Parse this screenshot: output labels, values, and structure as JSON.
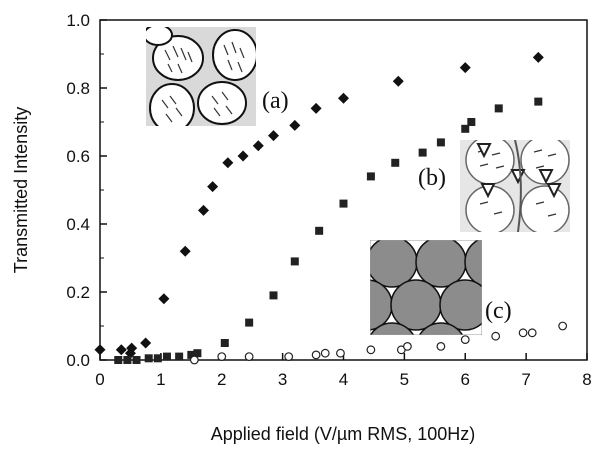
{
  "chart_data": {
    "type": "scatter",
    "xlabel": "Applied field (V/µm RMS, 100Hz)",
    "ylabel": "Transmitted Intensity",
    "xlim": [
      0,
      8
    ],
    "ylim": [
      0,
      1.0
    ],
    "xticks": [
      0,
      1,
      2,
      3,
      4,
      5,
      6,
      7,
      8
    ],
    "xtick_labels": [
      "0",
      "1",
      "2",
      "3",
      "4",
      "5",
      "6",
      "7",
      "8"
    ],
    "yticks": [
      0,
      0.2,
      0.4,
      0.6,
      0.8,
      1.0
    ],
    "ytick_labels": [
      "0.0",
      "0.2",
      "0.4",
      "0.6",
      "0.8",
      "1.0"
    ],
    "grid": false,
    "series": [
      {
        "marker": "diamond",
        "color": "#111111",
        "x": [
          0.0,
          0.35,
          0.5,
          0.52,
          0.75,
          1.05,
          1.4,
          1.7,
          1.85,
          2.1,
          2.35,
          2.6,
          2.85,
          3.2,
          3.55,
          4.0,
          4.9,
          6.0,
          7.2
        ],
        "y": [
          0.03,
          0.03,
          0.02,
          0.035,
          0.05,
          0.18,
          0.32,
          0.44,
          0.51,
          0.58,
          0.6,
          0.63,
          0.66,
          0.69,
          0.74,
          0.77,
          0.82,
          0.86,
          0.89
        ]
      },
      {
        "marker": "square",
        "color": "#222222",
        "x": [
          0.3,
          0.45,
          0.6,
          0.8,
          0.95,
          1.1,
          1.3,
          1.5,
          1.6,
          2.05,
          2.45,
          2.85,
          3.2,
          3.6,
          4.0,
          4.45,
          4.85,
          5.3,
          5.6,
          6.0,
          6.1,
          6.55,
          7.2
        ],
        "y": [
          0.0,
          0.0,
          0.0,
          0.005,
          0.005,
          0.01,
          0.01,
          0.015,
          0.02,
          0.05,
          0.11,
          0.19,
          0.29,
          0.38,
          0.46,
          0.54,
          0.58,
          0.61,
          0.64,
          0.68,
          0.7,
          0.74,
          0.76
        ]
      },
      {
        "marker": "open-circle",
        "color": "#222222",
        "x": [
          1.55,
          2.0,
          2.45,
          3.1,
          3.55,
          3.7,
          3.95,
          4.45,
          4.95,
          5.05,
          5.6,
          6.0,
          6.5,
          6.95,
          7.1,
          7.6
        ],
        "y": [
          0.0,
          0.01,
          0.01,
          0.01,
          0.015,
          0.02,
          0.02,
          0.03,
          0.03,
          0.04,
          0.04,
          0.06,
          0.07,
          0.08,
          0.08,
          0.1
        ]
      }
    ],
    "annotations": [
      {
        "text": "(a)",
        "icon": "inset-ellipses-bipolar-texture"
      },
      {
        "text": "(b)",
        "icon": "inset-droplets-with-defects-texture"
      },
      {
        "text": "(c)",
        "icon": "inset-gray-circles-packing"
      }
    ]
  }
}
